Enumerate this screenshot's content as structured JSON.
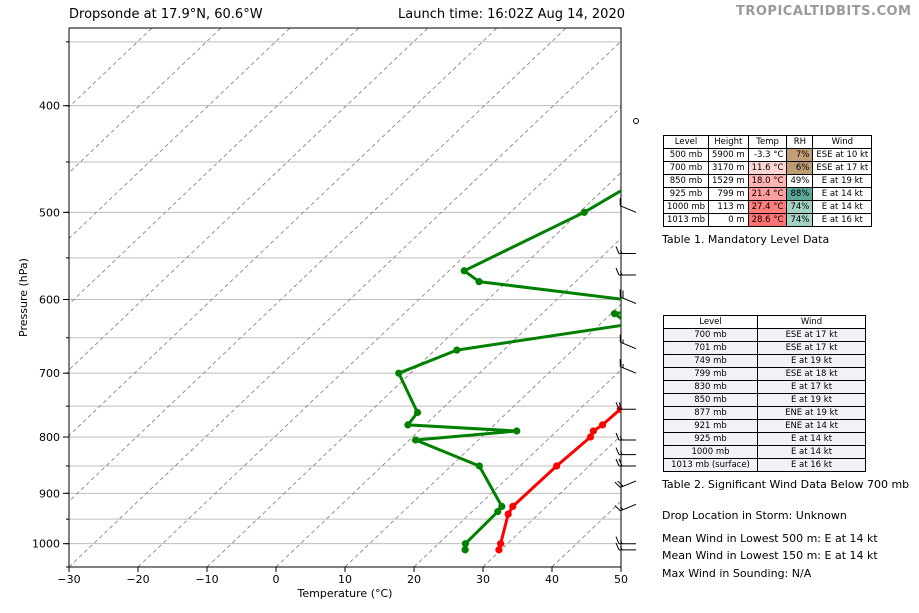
{
  "header": {
    "title_left": "Dropsonde at 17.9°N, 60.6°W",
    "title_right": "Launch time: 16:02Z Aug 14, 2020",
    "brand": "TROPICALTIDBITS.COM"
  },
  "chart_data": {
    "type": "line",
    "title": "Dropsonde at 17.9°N, 60.6°W",
    "xlabel": "Temperature (°C)",
    "ylabel": "Pressure (hPa)",
    "xlim": [
      -30,
      50
    ],
    "ylim": [
      1050,
      340
    ],
    "y_scale": "log",
    "x_ticks": [
      -30,
      -20,
      -10,
      0,
      10,
      20,
      30,
      40,
      50
    ],
    "x_tick_labels": [
      "−30",
      "−20",
      "−10",
      "0",
      "10",
      "20",
      "30",
      "40",
      "50"
    ],
    "y_ticks": [
      400,
      500,
      600,
      700,
      800,
      900,
      1000
    ],
    "grid": true,
    "isotherms_dashed": true,
    "series": [
      {
        "name": "",
        "color": "#ff0000",
        "points": [
          [
            19.3,
            415
          ],
          [
            19.8,
            430
          ],
          [
            22.0,
            500
          ],
          [
            24.3,
            565
          ],
          [
            24.2,
            578
          ],
          [
            22.5,
            602
          ],
          [
            22.4,
            612
          ],
          [
            22.5,
            620
          ],
          [
            22.8,
            632
          ],
          [
            25.2,
            665
          ],
          [
            25.5,
            700
          ],
          [
            25.9,
            755
          ],
          [
            25.7,
            780
          ],
          [
            25.3,
            790
          ],
          [
            25.8,
            800
          ],
          [
            25.3,
            850
          ],
          [
            25.1,
            925
          ],
          [
            25.6,
            940
          ],
          [
            29.0,
            1000
          ],
          [
            29.7,
            1013
          ]
        ]
      },
      {
        "name": "",
        "color": "#008000",
        "points": [
          [
            7.3,
            415
          ],
          [
            -3.5,
            440
          ],
          [
            -9.3,
            500
          ],
          [
            -17.8,
            565
          ],
          [
            -14.0,
            578
          ],
          [
            15.0,
            605
          ],
          [
            15.0,
            612
          ],
          [
            10.5,
            618
          ],
          [
            14.2,
            632
          ],
          [
            -6.8,
            667
          ],
          [
            -11.7,
            700
          ],
          [
            -3.0,
            760
          ],
          [
            -2.5,
            780
          ],
          [
            14.2,
            790
          ],
          [
            0.9,
            805
          ],
          [
            14.1,
            850
          ],
          [
            23.5,
            925
          ],
          [
            23.7,
            935
          ],
          [
            23.9,
            1000
          ],
          [
            24.8,
            1013
          ]
        ]
      }
    ],
    "wind_barbs": [
      {
        "p": 413,
        "calm": true
      },
      {
        "p": 500,
        "dir": "ESE",
        "kt": 10
      },
      {
        "p": 545,
        "dir": "E",
        "kt": 14
      },
      {
        "p": 570,
        "dir": "E",
        "kt": 14
      },
      {
        "p": 605,
        "dir": "ESE",
        "kt": 22
      },
      {
        "p": 665,
        "dir": "ESE",
        "kt": 14
      },
      {
        "p": 700,
        "dir": "ESE",
        "kt": 17
      },
      {
        "p": 755,
        "dir": "E",
        "kt": 19
      },
      {
        "p": 805,
        "dir": "E",
        "kt": 14
      },
      {
        "p": 830,
        "dir": "E",
        "kt": 17
      },
      {
        "p": 850,
        "dir": "E",
        "kt": 19
      },
      {
        "p": 877,
        "dir": "ENE",
        "kt": 19
      },
      {
        "p": 921,
        "dir": "ENE",
        "kt": 14
      },
      {
        "p": 1000,
        "dir": "E",
        "kt": 14
      },
      {
        "p": 1013,
        "dir": "E",
        "kt": 16
      }
    ]
  },
  "table1": {
    "headers": [
      "Level",
      "Height",
      "Temp",
      "RH",
      "Wind"
    ],
    "rows": [
      {
        "level": "500 mb",
        "height": "5900 m",
        "temp": "-3.3 °C",
        "rh": "7%",
        "wind": "ESE at 10 kt",
        "temp_bg": "#ffffff",
        "rh_bg": "#c29f7a"
      },
      {
        "level": "700 mb",
        "height": "3170 m",
        "temp": "11.6 °C",
        "rh": "6%",
        "wind": "ESE at 17 kt",
        "temp_bg": "#ffd6d6",
        "rh_bg": "#bd9b73"
      },
      {
        "level": "850 mb",
        "height": "1529 m",
        "temp": "18.0 °C",
        "rh": "49%",
        "wind": "E at 19 kt",
        "temp_bg": "#ffb3b3",
        "rh_bg": "#ffffff"
      },
      {
        "level": "925 mb",
        "height": "799 m",
        "temp": "21.4 °C",
        "rh": "88%",
        "wind": "E at 14 kt",
        "temp_bg": "#ff9e9e",
        "rh_bg": "#5fa99a"
      },
      {
        "level": "1000 mb",
        "height": "113 m",
        "temp": "27.4 °C",
        "rh": "74%",
        "wind": "E at 14 kt",
        "temp_bg": "#ff7d7d",
        "rh_bg": "#a4d2c5"
      },
      {
        "level": "1013 mb",
        "height": "0 m",
        "temp": "28.6 °C",
        "rh": "74%",
        "wind": "E at 16 kt",
        "temp_bg": "#ff7373",
        "rh_bg": "#a4d2c5"
      }
    ],
    "caption": "Table 1. Mandatory Level Data"
  },
  "table2": {
    "headers": [
      "Level",
      "Wind"
    ],
    "rows": [
      {
        "level": "700 mb",
        "wind": "ESE at 17 kt"
      },
      {
        "level": "701 mb",
        "wind": "ESE at 17 kt"
      },
      {
        "level": "749 mb",
        "wind": "E at 19 kt"
      },
      {
        "level": "799 mb",
        "wind": "ESE at 18 kt"
      },
      {
        "level": "830 mb",
        "wind": "E at 17 kt"
      },
      {
        "level": "850 mb",
        "wind": "E at 19 kt"
      },
      {
        "level": "877 mb",
        "wind": "ENE at 19 kt"
      },
      {
        "level": "921 mb",
        "wind": "ENE at 14 kt"
      },
      {
        "level": "925 mb",
        "wind": "E at 14 kt"
      },
      {
        "level": "1000 mb",
        "wind": "E at 14 kt"
      },
      {
        "level": "1013 mb (surface)",
        "wind": "E at 16 kt"
      }
    ],
    "caption": "Table 2. Significant Wind Data Below 700 mb"
  },
  "info": {
    "drop_location": "Drop Location in Storm: Unknown",
    "mean_wind_500": "Mean Wind in Lowest 500 m:  E at 14 kt",
    "mean_wind_150": "Mean Wind in Lowest 150 m:  E at 14 kt",
    "max_wind": "Max Wind in Sounding:  N/A"
  }
}
